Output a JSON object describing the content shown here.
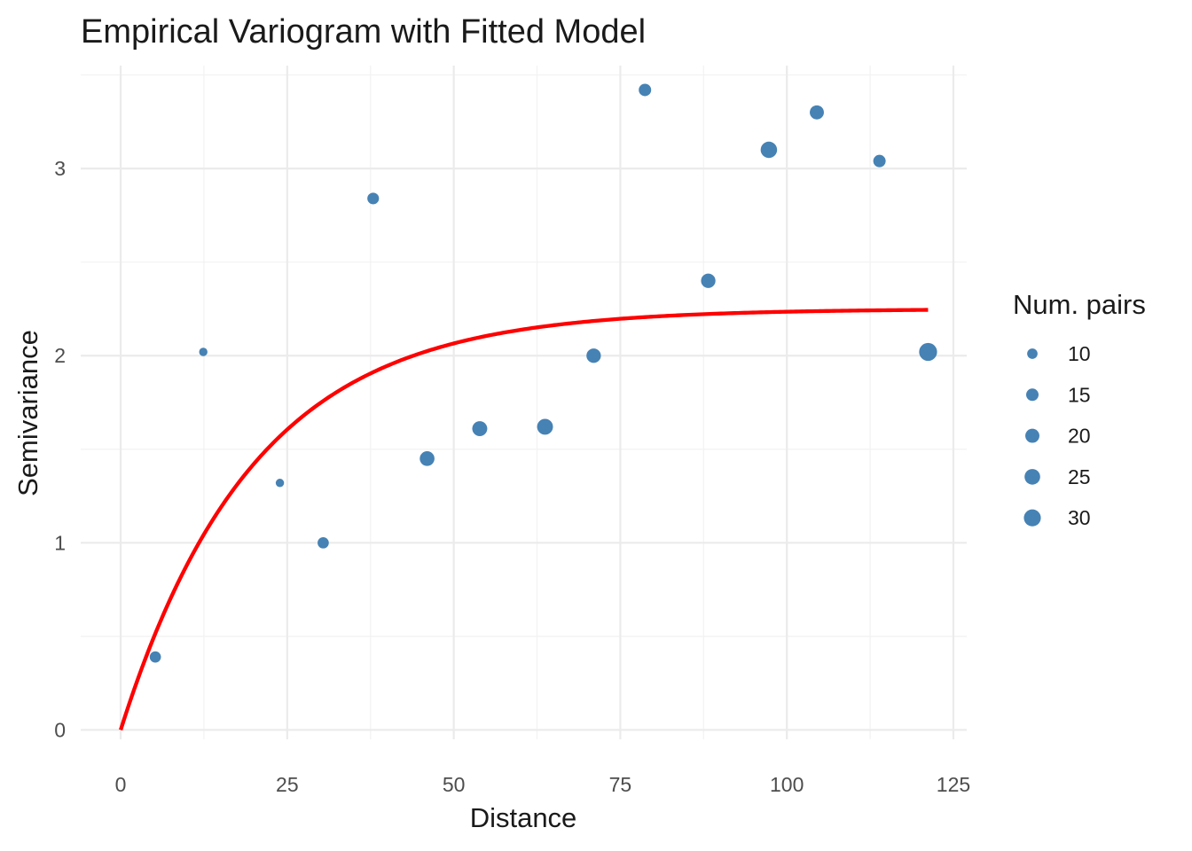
{
  "chart_data": {
    "type": "scatter",
    "title": "Empirical Variogram with Fitted Model",
    "xlabel": "Distance",
    "ylabel": "Semivariance",
    "xlim": [
      -6,
      127
    ],
    "ylim": [
      -0.05,
      3.55
    ],
    "x_ticks": [
      0,
      25,
      50,
      75,
      100,
      125
    ],
    "y_ticks": [
      0,
      1,
      2,
      3
    ],
    "grid": true,
    "point_color": "#4682B4",
    "line_color": "#FF0000",
    "points": [
      {
        "x": 5.2,
        "y": 0.39,
        "np": 12
      },
      {
        "x": 12.4,
        "y": 2.02,
        "np": 6
      },
      {
        "x": 23.9,
        "y": 1.32,
        "np": 6
      },
      {
        "x": 30.4,
        "y": 1.0,
        "np": 12
      },
      {
        "x": 37.9,
        "y": 2.84,
        "np": 13
      },
      {
        "x": 46.0,
        "y": 1.45,
        "np": 22
      },
      {
        "x": 53.9,
        "y": 1.61,
        "np": 23
      },
      {
        "x": 63.7,
        "y": 1.62,
        "np": 26
      },
      {
        "x": 71.0,
        "y": 2.0,
        "np": 21
      },
      {
        "x": 78.7,
        "y": 3.42,
        "np": 15
      },
      {
        "x": 88.2,
        "y": 2.4,
        "np": 21
      },
      {
        "x": 97.3,
        "y": 3.1,
        "np": 28
      },
      {
        "x": 104.5,
        "y": 3.3,
        "np": 20
      },
      {
        "x": 113.9,
        "y": 3.04,
        "np": 15
      },
      {
        "x": 121.2,
        "y": 2.02,
        "np": 34
      }
    ],
    "fitted_model": {
      "type": "exponential",
      "nugget": 0,
      "psill": 2.25,
      "range": 20,
      "x_max": 121.2
    },
    "legend": {
      "title": "Num. pairs",
      "position": "right",
      "entries": [
        {
          "label": "10",
          "np": 10
        },
        {
          "label": "15",
          "np": 15
        },
        {
          "label": "20",
          "np": 20
        },
        {
          "label": "25",
          "np": 25
        },
        {
          "label": "30",
          "np": 30
        }
      ]
    }
  }
}
